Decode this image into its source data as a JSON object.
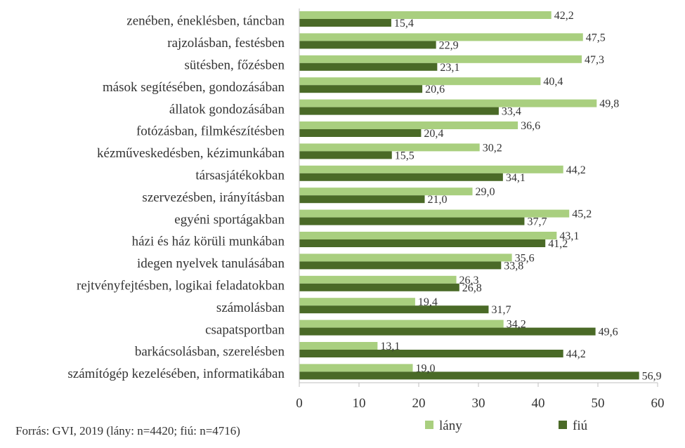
{
  "chart_data": {
    "type": "bar",
    "orientation": "horizontal",
    "categories": [
      "zenében, éneklésben, táncban",
      "rajzolásban, festésben",
      "sütésben, főzésben",
      "mások segítésében, gondozásában",
      "állatok gondozásában",
      "fotózásban, filmkészítésben",
      "kézműveskedésben, kézimunkában",
      "társasjátékokban",
      "szervezésben, irányításban",
      "egyéni sportágakban",
      "házi és ház körüli munkában",
      "idegen nyelvek tanulásában",
      "rejtvényfejtésben, logikai feladatokban",
      "számolásban",
      "csapatsportban",
      "barkácsolásban, szerelésben",
      "számítógép kezelésében, informatikában"
    ],
    "series": [
      {
        "name": "lány",
        "color": "#a9cf7f",
        "values": [
          42.2,
          47.5,
          47.3,
          40.4,
          49.8,
          36.6,
          30.2,
          44.2,
          29.0,
          45.2,
          43.1,
          35.6,
          26.3,
          19.4,
          34.2,
          13.1,
          19.0
        ],
        "labels": [
          "42,2",
          "47,5",
          "47,3",
          "40,4",
          "49,8",
          "36,6",
          "30,2",
          "44,2",
          "29,0",
          "45,2",
          "43,1",
          "35,6",
          "26,3",
          "19,4",
          "34,2",
          "13,1",
          "19,0"
        ]
      },
      {
        "name": "fiú",
        "color": "#4a6a27",
        "values": [
          15.4,
          22.9,
          23.1,
          20.6,
          33.4,
          20.4,
          15.5,
          34.1,
          21.0,
          37.7,
          41.2,
          33.8,
          26.8,
          31.7,
          49.6,
          44.2,
          56.9
        ],
        "labels": [
          "15,4",
          "22,9",
          "23,1",
          "20,6",
          "33,4",
          "20,4",
          "15,5",
          "34,1",
          "21,0",
          "37,7",
          "41,2",
          "33,8",
          "26,8",
          "31,7",
          "49,6",
          "44,2",
          "56,9"
        ]
      }
    ],
    "xlim": [
      0,
      60
    ],
    "xticks": [
      0,
      10,
      20,
      30,
      40,
      50,
      60
    ],
    "grid": false,
    "legend_position": "bottom-right"
  },
  "source": "Forrás: GVI, 2019 (lány: n=4420; fiú: n=4716)"
}
